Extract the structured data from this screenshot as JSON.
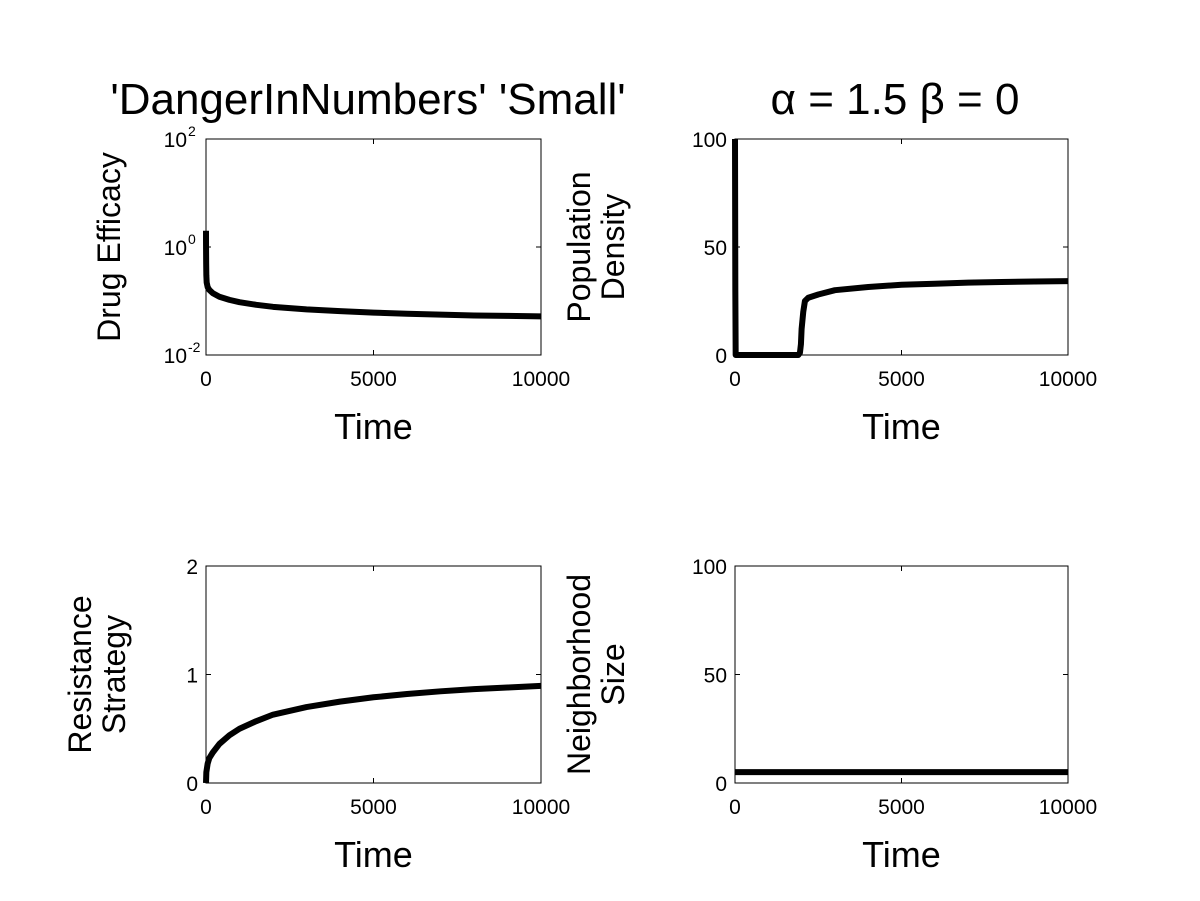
{
  "figure": {
    "title_left": "'DangerInNumbers' 'Small'",
    "title_right": "α = 1.5 β = 0"
  },
  "chart_data": [
    {
      "type": "line",
      "xlabel": "Time",
      "ylabel": [
        "Drug Efficacy"
      ],
      "xlim": [
        0,
        10000
      ],
      "ylim": [
        0.01,
        100
      ],
      "yscale": "log",
      "xticks": [
        "0",
        "5000",
        "10000"
      ],
      "yticks": [
        {
          "base": "10",
          "exp": "-2"
        },
        {
          "base": "10",
          "exp": "0"
        },
        {
          "base": "10",
          "exp": "2"
        }
      ],
      "line_color": "#000000",
      "series": [
        {
          "x": [
            0,
            1,
            5,
            10,
            20,
            50,
            100,
            200,
            400,
            700,
            1000,
            1500,
            2000,
            3000,
            4000,
            5000,
            6000,
            7000,
            8000,
            9000,
            10000
          ],
          "y": [
            2.0,
            1.2,
            0.5,
            0.3,
            0.22,
            0.18,
            0.16,
            0.14,
            0.12,
            0.105,
            0.095,
            0.085,
            0.078,
            0.07,
            0.065,
            0.061,
            0.058,
            0.056,
            0.054,
            0.053,
            0.052
          ]
        }
      ]
    },
    {
      "type": "line",
      "xlabel": "Time",
      "ylabel": [
        "Population",
        "Density"
      ],
      "xlim": [
        0,
        10000
      ],
      "ylim": [
        0,
        100
      ],
      "yscale": "linear",
      "xticks": [
        "0",
        "5000",
        "10000"
      ],
      "yticks": [
        "0",
        "50",
        "100"
      ],
      "line_color": "#000000",
      "series": [
        {
          "x": [
            0,
            10,
            20,
            50,
            1900,
            1950,
            1980,
            2000,
            2050,
            2100,
            2200,
            2500,
            3000,
            4000,
            5000,
            6000,
            7000,
            8000,
            9000,
            10000
          ],
          "y": [
            100,
            30,
            0,
            0,
            0,
            1,
            5,
            12,
            20,
            25,
            26.5,
            28,
            30,
            31.5,
            32.5,
            33,
            33.5,
            33.8,
            34,
            34.2
          ]
        }
      ]
    },
    {
      "type": "line",
      "xlabel": "Time",
      "ylabel": [
        "Resistance",
        "Strategy"
      ],
      "xlim": [
        0,
        10000
      ],
      "ylim": [
        0,
        2
      ],
      "yscale": "linear",
      "xticks": [
        "0",
        "5000",
        "10000"
      ],
      "yticks": [
        "0",
        "1",
        "2"
      ],
      "line_color": "#000000",
      "series": [
        {
          "x": [
            0,
            10,
            50,
            100,
            200,
            400,
            700,
            1000,
            1500,
            2000,
            3000,
            4000,
            5000,
            6000,
            7000,
            8000,
            9000,
            10000
          ],
          "y": [
            0.0,
            0.1,
            0.18,
            0.23,
            0.28,
            0.36,
            0.44,
            0.5,
            0.57,
            0.63,
            0.7,
            0.75,
            0.79,
            0.82,
            0.845,
            0.865,
            0.88,
            0.895
          ]
        }
      ]
    },
    {
      "type": "line",
      "xlabel": "Time",
      "ylabel": [
        "Neighborhood",
        "Size"
      ],
      "xlim": [
        0,
        10000
      ],
      "ylim": [
        0,
        100
      ],
      "yscale": "linear",
      "xticks": [
        "0",
        "5000",
        "10000"
      ],
      "yticks": [
        "0",
        "50",
        "100"
      ],
      "line_color": "#000000",
      "series": [
        {
          "x": [
            0,
            10000
          ],
          "y": [
            5,
            5
          ]
        }
      ]
    }
  ]
}
